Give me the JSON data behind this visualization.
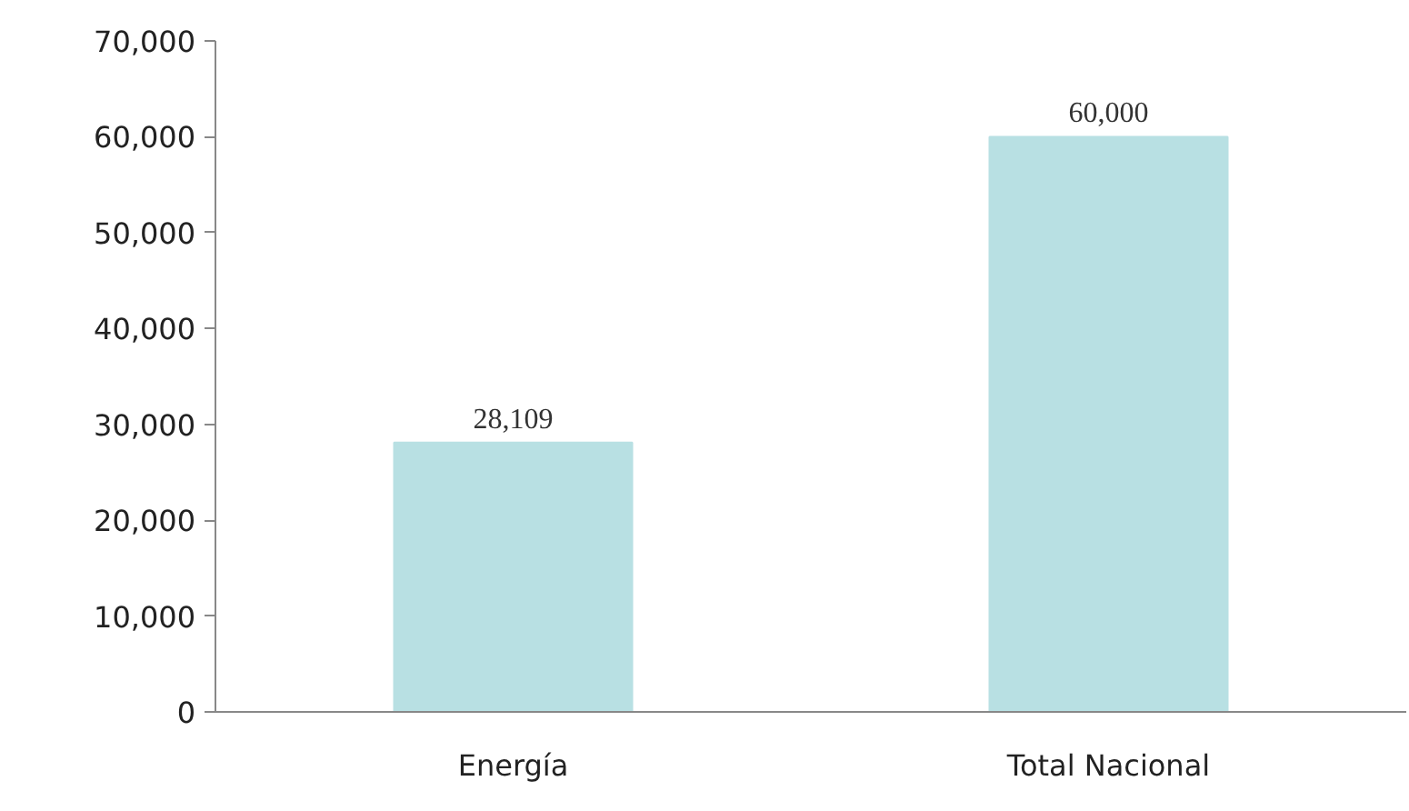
{
  "chart_data": {
    "type": "bar",
    "categories": [
      "Energía",
      "Total Nacional"
    ],
    "values": [
      28109,
      60000
    ],
    "value_labels": [
      "28,109",
      "60,000"
    ],
    "color": "#b8e0e3",
    "ylim": [
      0,
      70000
    ],
    "yticks": [
      0,
      {
        "value": 10000,
        "label": "10,000"
      },
      {
        "value": 20000,
        "label": "20,000"
      },
      {
        "value": 30000,
        "label": "30,000"
      },
      {
        "value": 40000,
        "label": "40,000"
      },
      {
        "value": 50000,
        "label": "50,000"
      },
      {
        "value": 60000,
        "label": "60,000"
      },
      {
        "value": 70000,
        "label": "70,000"
      }
    ],
    "grid": false
  }
}
